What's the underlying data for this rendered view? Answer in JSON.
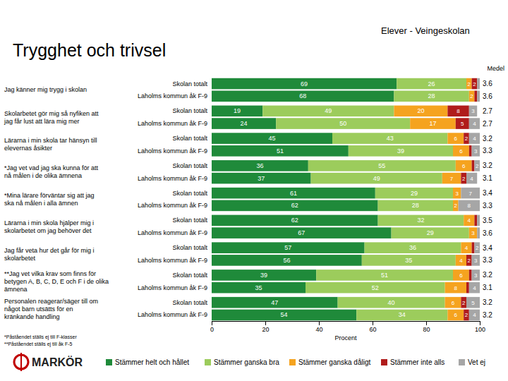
{
  "chart_data": {
    "type": "bar",
    "orientation": "horizontal",
    "stacked": true,
    "data_labels": true,
    "grid": false,
    "legend": "bottom",
    "title": "Trygghet och trivsel",
    "subtitle": "Elever - Veingeskolan",
    "xlabel": "Procent",
    "group_labels": [
      [
        "Jag känner mig trygg i skolan"
      ],
      [
        "Skolarbetet gör mig så nyfiken att",
        "jag får lust att lära mig mer"
      ],
      [
        "Lärarna i min skola tar hänsyn till",
        "elevernas åsikter"
      ],
      [
        "*Jag vet vad jag ska kunna för att",
        "nå målen i de olika ämnena"
      ],
      [
        "*Mina lärare förväntar sig att jag",
        "ska nå målen i alla ämnen"
      ],
      [
        "Lärarna i min skola hjälper mig i",
        "skolarbetet om jag behöver det"
      ],
      [
        "Jag får veta hur det går för mig i",
        "skolarbetet"
      ],
      [
        "**Jag vet vilka krav som finns för",
        "betygen A, B, C, D, E och F i de olika",
        "ämnena"
      ],
      [
        "Personalen reagerar/säger till om",
        "något barn utsätts för en",
        "kränkande handling"
      ]
    ],
    "categories": [
      "Skolan totalt",
      "Laholms kommun åk F-9",
      "Skolan totalt",
      "Laholms kommun åk F-9",
      "Skolan totalt",
      "Laholms kommun åk F-9",
      "Skolan totalt",
      "Laholms kommun åk F-9",
      "Skolan totalt",
      "Laholms kommun åk F-9",
      "Skolan totalt",
      "Laholms kommun åk F-9",
      "Skolan totalt",
      "Laholms kommun åk F-9",
      "Skolan totalt",
      "Laholms kommun åk F-9",
      "Skolan totalt",
      "Laholms kommun åk F-9"
    ],
    "series": [
      {
        "name": "Stämmer helt och hållet",
        "color": "#1f8a3a",
        "values": [
          69,
          68,
          19,
          24,
          45,
          51,
          36,
          37,
          61,
          62,
          62,
          67,
          57,
          56,
          39,
          35,
          47,
          54
        ]
      },
      {
        "name": "Stämmer ganska bra",
        "color": "#9ccc5c",
        "values": [
          26,
          28,
          49,
          50,
          43,
          39,
          55,
          49,
          29,
          28,
          32,
          29,
          36,
          35,
          51,
          52,
          40,
          34
        ]
      },
      {
        "name": "Stämmer ganska dåligt",
        "color": "#f5a31f",
        "values": [
          2,
          2,
          20,
          17,
          6,
          6,
          6,
          7,
          3,
          2,
          4,
          3,
          4,
          4,
          6,
          8,
          6,
          6
        ]
      },
      {
        "name": "Stämmer inte alls",
        "color": "#b01c1c",
        "values": [
          2,
          1,
          8,
          5,
          2,
          1,
          1,
          2,
          0,
          0,
          1,
          0,
          1,
          2,
          1,
          1,
          2,
          2
        ]
      },
      {
        "name": "Vet ej",
        "color": "#a6a6a6",
        "values": [
          1,
          1,
          3,
          4,
          4,
          3,
          2,
          4,
          7,
          8,
          1,
          1,
          2,
          3,
          3,
          4,
          5,
          4
        ]
      }
    ],
    "mean": {
      "title": "Medel",
      "values": [
        3.6,
        3.6,
        2.7,
        2.7,
        3.2,
        3.3,
        3.2,
        3.1,
        3.4,
        3.3,
        3.5,
        3.6,
        3.4,
        3.3,
        3.2,
        3.1,
        3.2,
        3.2
      ]
    },
    "xlim": [
      0,
      100
    ],
    "xticks": [
      0,
      20,
      40,
      60,
      80,
      100
    ],
    "notes": [
      "*Påståendet ställs ej till F-klasser",
      "**Påståendet ställs ej till åk F-5"
    ],
    "logo": "MARKÖR"
  }
}
